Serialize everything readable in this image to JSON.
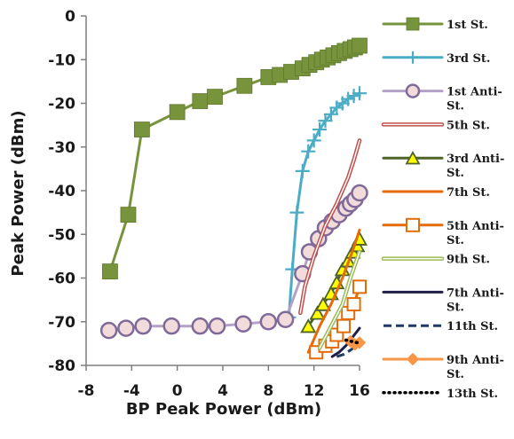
{
  "chart_data": {
    "type": "line",
    "title": "",
    "xlabel": "BP Peak Power (dBm)",
    "ylabel": "Peak Power (dBm)",
    "xlim": [
      -8,
      16
    ],
    "ylim": [
      -80,
      0
    ],
    "xticks": [
      -8,
      -4,
      0,
      4,
      8,
      12,
      16
    ],
    "yticks": [
      0,
      -10,
      -20,
      -30,
      -40,
      -50,
      -60,
      -70,
      -80
    ],
    "grid": false,
    "legend_position": "right",
    "series": [
      {
        "name": "1st St.",
        "color": "#77933c",
        "marker": "square",
        "line": "solid",
        "x": [
          -5.9,
          -4.3,
          -3.1,
          0,
          2,
          3.3,
          5.9,
          8,
          9,
          10,
          11,
          11.6,
          12.2,
          12.7,
          13.2,
          13.7,
          14.2,
          14.7,
          15.2,
          15.6,
          16
        ],
        "y": [
          -58.5,
          -45.5,
          -26,
          -22,
          -19.5,
          -18.5,
          -16,
          -14,
          -13.5,
          -12.8,
          -12,
          -11.2,
          -10.6,
          -10,
          -9.5,
          -9,
          -8.5,
          -8,
          -7.6,
          -7.2,
          -6.8
        ]
      },
      {
        "name": "3rd St.",
        "color": "#4bacc6",
        "marker": "plus",
        "line": "solid",
        "x": [
          9.8,
          10.1,
          10.5,
          11,
          11.5,
          12,
          12.5,
          13,
          13.5,
          14,
          14.5,
          15,
          15.5,
          16
        ],
        "y": [
          -69,
          -58,
          -45,
          -35.5,
          -31,
          -28.5,
          -26,
          -24,
          -22.5,
          -21,
          -20,
          -19,
          -18.3,
          -17.7
        ]
      },
      {
        "name": "1st Anti-St.",
        "color": "#b3a2c7",
        "marker": "circle",
        "line": "solid",
        "x": [
          -6,
          -4.5,
          -3,
          -0.5,
          2,
          3.5,
          5.8,
          8,
          9.5,
          11,
          11.6,
          12.4,
          13,
          13.6,
          14.2,
          14.8,
          15.2,
          15.6,
          16
        ],
        "y": [
          -72,
          -71.5,
          -71,
          -71,
          -71,
          -71,
          -70.5,
          -70,
          -69.5,
          -59,
          -54,
          -51,
          -48.5,
          -47,
          -45.5,
          -44,
          -43,
          -42,
          -40.5
        ]
      },
      {
        "name": "5th St.",
        "color": "#c0504d",
        "marker": "none",
        "line": "double",
        "x": [
          10.8,
          11.2,
          12,
          13,
          14,
          15,
          15.5,
          16
        ],
        "y": [
          -68,
          -62,
          -55,
          -48,
          -43,
          -37,
          -33,
          -28.5
        ]
      },
      {
        "name": "3rd Anti-St.",
        "color": "#4f6228",
        "marker": "triangle",
        "line": "solid",
        "x": [
          11.5,
          12.3,
          12.8,
          13.5,
          14,
          14.5,
          15,
          15.4,
          15.8,
          16
        ],
        "y": [
          -71,
          -68,
          -66,
          -63.5,
          -61,
          -58,
          -56,
          -54,
          -52.5,
          -51
        ]
      },
      {
        "name": "7th St.",
        "color": "#e36c09",
        "marker": "none",
        "line": "solid",
        "x": [
          11.5,
          12.5,
          13.5,
          14.5,
          15.5,
          16
        ],
        "y": [
          -77,
          -71,
          -66,
          -60,
          -53,
          -49
        ]
      },
      {
        "name": "5th Anti-St.",
        "color": "#e36c09",
        "marker": "square-open",
        "line": "solid",
        "x": [
          12.2,
          13,
          13.6,
          14,
          14.6,
          15,
          15.5,
          16
        ],
        "y": [
          -77,
          -75.5,
          -74.5,
          -73,
          -71,
          -68,
          -66,
          -62
        ]
      },
      {
        "name": "9th St.",
        "color": "#9bbb59",
        "marker": "none",
        "line": "double",
        "x": [
          12.5,
          13.5,
          14.5,
          15.2,
          16
        ],
        "y": [
          -76,
          -71,
          -66,
          -60,
          -54
        ]
      },
      {
        "name": "7th Anti-St.",
        "color": "#1f1f4a",
        "marker": "none",
        "line": "solid",
        "x": [
          13.6,
          14.2,
          14.8,
          15.4,
          16
        ],
        "y": [
          -78,
          -77,
          -75.5,
          -73.5,
          -71.5
        ]
      },
      {
        "name": "11th St.",
        "color": "#1f3864",
        "marker": "none",
        "line": "dashed",
        "x": [
          14,
          14.6,
          15.2,
          16
        ],
        "y": [
          -78,
          -77.5,
          -76.5,
          -75
        ]
      },
      {
        "name": "9th Anti-St.",
        "color": "#f79646",
        "marker": "diamond",
        "line": "solid",
        "x": [
          15.2,
          15.6,
          16
        ],
        "y": [
          -74.5,
          -75.2,
          -74.8
        ]
      },
      {
        "name": "13th St.",
        "color": "#000000",
        "marker": "none",
        "line": "dotted",
        "x": [
          14.8,
          15.3,
          15.8
        ],
        "y": [
          -74.2,
          -74.5,
          -74.8
        ]
      }
    ]
  }
}
